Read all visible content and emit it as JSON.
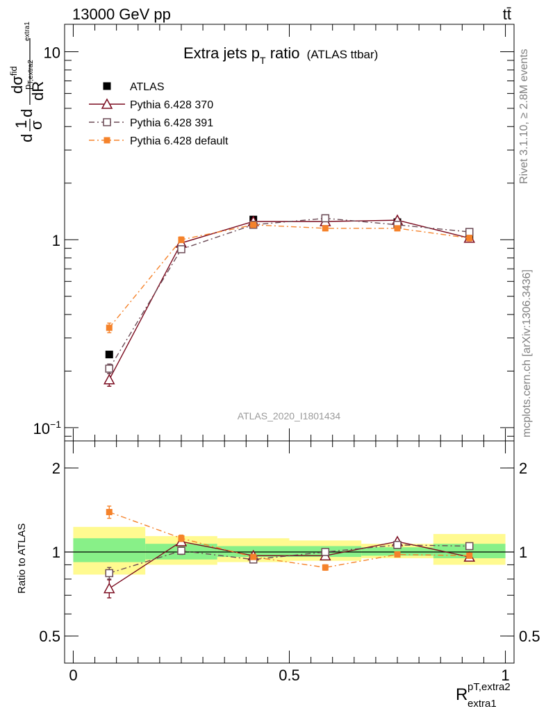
{
  "header": {
    "energy_label": "13000 GeV pp",
    "process_label": "tt̄"
  },
  "side_labels": {
    "rivet": "Rivet 3.1.10, ≥ 2.8M events",
    "mcplots": "mcplots.cern.ch [arXiv:1306.3436]"
  },
  "colors": {
    "atlas": "#000000",
    "py370": "#7a0a1e",
    "py391": "#6b4a55",
    "pydefault": "#f5822a",
    "band_inner": "#88f088",
    "band_outer": "#fffa90"
  },
  "chart_data": [
    {
      "type": "scatter",
      "title": "Extra jets p",
      "title_sub": "T",
      "title_suffix": " ratio",
      "title_note": "(ATLAS ttbar)",
      "analysis_label": "ATLAS_2020_I1801434",
      "y_scale": "log",
      "ylim": [
        0.085,
        14
      ],
      "xlim": [
        -0.02,
        1.02
      ],
      "yticks_major": [
        {
          "value": 0.1,
          "base": "10",
          "exp": "−1"
        },
        {
          "value": 1,
          "base": "1",
          "exp": ""
        },
        {
          "value": 10,
          "base": "10",
          "exp": ""
        }
      ],
      "ylabel": {
        "d1": "d",
        "one": "1",
        "sigma": "σ",
        "d2": "d",
        "num": "dσ",
        "num_sup": "fid",
        "num_sub": "p",
        "num_subsub": "T,extra2",
        "den": "dR",
        "den_sup": "",
        "den_sub": "extra1"
      },
      "legend_position": "top-left",
      "series": [
        {
          "name": "ATLAS",
          "marker": "filled-square",
          "line": "none",
          "x": [
            0.0833,
            0.25,
            0.4167,
            0.5833,
            0.75,
            0.9167
          ],
          "y": [
            0.245,
            0.9,
            1.28,
            1.3,
            1.24,
            1.05
          ],
          "yerr": [
            0,
            0,
            0,
            0,
            0,
            0
          ]
        },
        {
          "name": "Pythia 6.428 370",
          "marker": "open-triangle",
          "line": "solid",
          "x": [
            0.0833,
            0.25,
            0.4167,
            0.5833,
            0.75,
            0.9167
          ],
          "y": [
            0.18,
            0.96,
            1.25,
            1.25,
            1.27,
            1.02
          ],
          "yerr": [
            0.014,
            0.03,
            0.03,
            0.03,
            0.03,
            0.03
          ]
        },
        {
          "name": "Pythia 6.428 391",
          "marker": "open-square",
          "line": "dashdot",
          "x": [
            0.0833,
            0.25,
            0.4167,
            0.5833,
            0.75,
            0.9167
          ],
          "y": [
            0.206,
            0.89,
            1.2,
            1.3,
            1.2,
            1.1
          ],
          "yerr": [
            0.012,
            0.03,
            0.03,
            0.03,
            0.03,
            0.03
          ]
        },
        {
          "name": "Pythia 6.428 default",
          "marker": "filled-small-square",
          "line": "dashdot",
          "x": [
            0.0833,
            0.25,
            0.4167,
            0.5833,
            0.75,
            0.9167
          ],
          "y": [
            0.34,
            1.0,
            1.2,
            1.15,
            1.15,
            1.02
          ],
          "yerr": [
            0.02,
            0.035,
            0.035,
            0.035,
            0.035,
            0.035
          ]
        }
      ]
    },
    {
      "type": "scatter",
      "ylabel": "Ratio to ATLAS",
      "xlabel": {
        "base": "R",
        "sup": "pT,extra2",
        "sub": "extra1"
      },
      "y_scale": "log",
      "ylim": [
        0.4,
        2.5
      ],
      "xlim": [
        -0.02,
        1.02
      ],
      "xticks": [
        {
          "value": 0,
          "label": "0"
        },
        {
          "value": 0.5,
          "label": "0.5"
        },
        {
          "value": 1,
          "label": "1"
        }
      ],
      "yticks_major": [
        {
          "value": 0.5,
          "label": "0.5"
        },
        {
          "value": 1,
          "label": "1"
        },
        {
          "value": 2,
          "label": "2"
        }
      ],
      "bands": {
        "edges": [
          0,
          0.1667,
          0.3333,
          0.5,
          0.6667,
          0.8333,
          1.0
        ],
        "inner": [
          [
            0.92,
            1.12
          ],
          [
            0.94,
            1.07
          ],
          [
            0.96,
            1.05
          ],
          [
            0.96,
            1.05
          ],
          [
            0.97,
            1.04
          ],
          [
            0.95,
            1.07
          ]
        ],
        "outer": [
          [
            0.83,
            1.23
          ],
          [
            0.9,
            1.14
          ],
          [
            0.92,
            1.12
          ],
          [
            0.93,
            1.1
          ],
          [
            0.95,
            1.07
          ],
          [
            0.9,
            1.16
          ]
        ]
      },
      "series": [
        {
          "name": "Pythia 6.428 370",
          "marker": "open-triangle",
          "line": "solid",
          "x": [
            0.0833,
            0.25,
            0.4167,
            0.5833,
            0.75,
            0.9167
          ],
          "y": [
            0.74,
            1.09,
            0.97,
            0.97,
            1.09,
            0.96
          ],
          "yerr": [
            0.055,
            0.03,
            0.02,
            0.02,
            0.02,
            0.02
          ]
        },
        {
          "name": "Pythia 6.428 391",
          "marker": "open-square",
          "line": "dashdot",
          "x": [
            0.0833,
            0.25,
            0.4167,
            0.5833,
            0.75,
            0.9167
          ],
          "y": [
            0.84,
            1.01,
            0.94,
            1.0,
            1.06,
            1.05
          ],
          "yerr": [
            0.04,
            0.03,
            0.02,
            0.02,
            0.02,
            0.02
          ]
        },
        {
          "name": "Pythia 6.428 default",
          "marker": "filled-small-square",
          "line": "dashdot",
          "x": [
            0.0833,
            0.25,
            0.4167,
            0.5833,
            0.75,
            0.9167
          ],
          "y": [
            1.39,
            1.12,
            0.96,
            0.88,
            0.98,
            0.97
          ],
          "yerr": [
            0.07,
            0.03,
            0.02,
            0.02,
            0.02,
            0.02
          ]
        }
      ]
    }
  ]
}
